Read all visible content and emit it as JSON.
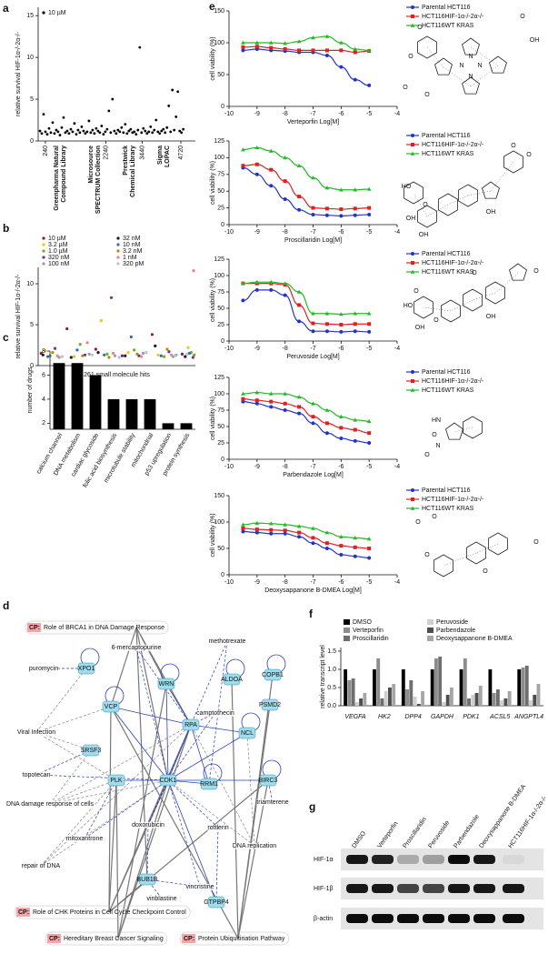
{
  "panel_labels": [
    "a",
    "b",
    "c",
    "d",
    "e",
    "f",
    "g"
  ],
  "chart_data": [
    {
      "type": "scatter",
      "ylabel": "relative survival HIF-1α-/-2α-/-",
      "xlim": [
        0,
        5200
      ],
      "xticks": [
        240,
        2240,
        3440,
        4720
      ],
      "ylim": [
        0,
        16
      ],
      "yticks": [
        0,
        5,
        10,
        15
      ],
      "groups": [
        [
          "Greenpharma Natural",
          "Compound Library"
        ],
        [
          "Microsource",
          "SPECTRUM Collection"
        ],
        [
          "Prestwick",
          "Chemical Library"
        ],
        [
          "Sigma",
          "LOPAC"
        ]
      ],
      "series": [
        {
          "name": "10 µM",
          "color": "#000000",
          "x": [
            60,
            120,
            180,
            240,
            300,
            360,
            420,
            480,
            540,
            600,
            660,
            720,
            780,
            840,
            900,
            960,
            1020,
            1080,
            1140,
            1200,
            1260,
            1320,
            1380,
            1440,
            1500,
            1560,
            1620,
            1680,
            1740,
            1800,
            1860,
            1920,
            1980,
            2040,
            2100,
            2160,
            2220,
            2280,
            2340,
            2400,
            2460,
            2520,
            2580,
            2640,
            2700,
            2760,
            2820,
            2880,
            2940,
            3000,
            3060,
            3120,
            3180,
            3240,
            3300,
            3360,
            3420,
            3480,
            3540,
            3600,
            3660,
            3720,
            3780,
            3840,
            3900,
            3960,
            4020,
            4080,
            4140,
            4200,
            4260,
            4320,
            4380,
            4440,
            4500,
            4560,
            4620,
            4680,
            4740,
            4800
          ],
          "values": [
            1.2,
            0.9,
            3.2,
            1.1,
            0.8,
            1.5,
            1.0,
            2.2,
            0.9,
            1.3,
            1.1,
            0.7,
            1.6,
            2.8,
            1.0,
            1.2,
            0.9,
            1.4,
            1.1,
            2.1,
            0.8,
            1.3,
            1.0,
            1.7,
            1.2,
            0.9,
            1.1,
            2.4,
            1.0,
            1.3,
            0.9,
            1.5,
            1.2,
            1.0,
            1.8,
            0.8,
            1.1,
            1.4,
            3.6,
            1.0,
            5.0,
            1.2,
            0.9,
            1.3,
            1.1,
            1.6,
            1.0,
            2.0,
            0.9,
            1.2,
            1.4,
            1.0,
            1.1,
            0.8,
            1.3,
            11.2,
            1.0,
            1.5,
            1.2,
            0.9,
            1.1,
            1.7,
            1.0,
            1.3,
            2.5,
            1.1,
            0.9,
            1.2,
            1.4,
            1.0,
            1.6,
            4.2,
            1.1,
            6.1,
            1.3,
            2.9,
            5.9,
            1.2,
            1.0,
            1.4
          ]
        }
      ]
    },
    {
      "type": "scatter",
      "ylabel": "relative survival HIF-1α-/-2α-/-",
      "xlabel": "261 small molecule hits",
      "xlim": [
        0,
        262
      ],
      "ylim": [
        0,
        12
      ],
      "yticks": [
        0,
        5,
        10
      ],
      "series": [
        {
          "name": "10 µM",
          "color": "#8b1a4a",
          "x": [
            5,
            48,
            96,
            140,
            190,
            240
          ],
          "values": [
            1.5,
            4.5,
            2.0,
            1.2,
            3.8,
            1.4
          ]
        },
        {
          "name": "3.2 µM",
          "color": "#e6c619",
          "x": [
            12,
            60,
            105,
            150,
            200,
            250
          ],
          "values": [
            1.8,
            1.1,
            5.5,
            1.6,
            1.3,
            2.2
          ]
        },
        {
          "name": "1.0 µM",
          "color": "#6ab023",
          "x": [
            20,
            70,
            115,
            160,
            210,
            255
          ],
          "values": [
            1.2,
            2.6,
            1.4,
            1.9,
            1.1,
            1.6
          ]
        },
        {
          "name": "320 nM",
          "color": "#7a2e8c",
          "x": [
            28,
            78,
            122,
            168,
            218,
            258
          ],
          "values": [
            2.1,
            1.3,
            8.3,
            1.2,
            1.7,
            1.0
          ]
        },
        {
          "name": "100 nM",
          "color": "#9a9a9a",
          "x": [
            35,
            85,
            128,
            175,
            225,
            230
          ],
          "values": [
            1.0,
            1.4,
            1.2,
            1.5,
            1.1,
            1.3
          ]
        },
        {
          "name": "32 nM",
          "color": "#1a1a1a",
          "x": [
            8,
            55,
            100,
            145,
            195,
            245
          ],
          "values": [
            1.3,
            1.0,
            1.6,
            1.2,
            2.4,
            1.1
          ]
        },
        {
          "name": "10 nM",
          "color": "#2c6db5",
          "x": [
            16,
            65,
            110,
            155,
            205,
            252
          ],
          "values": [
            1.1,
            1.9,
            1.3,
            3.5,
            1.2,
            1.5
          ]
        },
        {
          "name": "3.2 nM",
          "color": "#b8860b",
          "x": [
            24,
            74,
            118,
            165,
            215,
            260
          ],
          "values": [
            1.6,
            1.2,
            1.0,
            1.4,
            2.0,
            1.3
          ]
        },
        {
          "name": "1 nM",
          "color": "#f08080",
          "x": [
            32,
            82,
            125,
            172,
            222,
            259
          ],
          "values": [
            1.2,
            2.8,
            1.5,
            1.1,
            1.3,
            11.6
          ]
        },
        {
          "name": "320 pM",
          "color": "#b0c4de",
          "x": [
            40,
            90,
            135,
            180,
            228,
            248
          ],
          "values": [
            1.1,
            1.3,
            1.0,
            1.6,
            1.2,
            1.4
          ]
        }
      ]
    },
    {
      "type": "bar",
      "ylabel": "number of drugs",
      "color": "#000000",
      "categories": [
        "calcium channel",
        "DNA metabolism",
        "cardiac glycoside",
        "folic acid biosynthesis",
        "microtubule stability",
        "mitochondrial",
        "p53 upregulation",
        "protein synthesis"
      ],
      "values": [
        7,
        7,
        6,
        4,
        4,
        4,
        2,
        2
      ],
      "ylim": [
        1.5,
        8
      ],
      "yticks": [
        2,
        4,
        6,
        8
      ]
    },
    {
      "type": "line",
      "ylabel": "cell viability (%)",
      "xlabel": "Verteporfin Log[M]",
      "x": [
        -9.5,
        -9,
        -8.5,
        -8,
        -7.5,
        -7,
        -6.5,
        -6,
        -5.5,
        -5
      ],
      "xlim": [
        -10,
        -4
      ],
      "xticks": [
        -10,
        -9,
        -8,
        -7,
        -6,
        -5,
        -4
      ],
      "ylim": [
        0,
        150
      ],
      "yticks": [
        0,
        50,
        100,
        150
      ],
      "series": [
        {
          "name": "Parental HCT116",
          "color": "#2233cc",
          "values": [
            88,
            90,
            88,
            87,
            85,
            85,
            80,
            62,
            42,
            33
          ]
        },
        {
          "name": "HCT116HIF-1α-/-2α-/-",
          "color": "#e02020",
          "values": [
            93,
            94,
            92,
            90,
            88,
            88,
            88,
            88,
            85,
            87
          ]
        },
        {
          "name": "HCT116WT KRAS",
          "color": "#22bb22",
          "values": [
            100,
            100,
            100,
            99,
            102,
            108,
            110,
            100,
            90,
            88
          ]
        }
      ]
    },
    {
      "type": "line",
      "ylabel": "cell viability (%)",
      "xlabel": "Proscillaridin Log[M]",
      "x": [
        -9.5,
        -9,
        -8.5,
        -8,
        -7.5,
        -7,
        -6.5,
        -6,
        -5.5,
        -5
      ],
      "xlim": [
        -10,
        -4
      ],
      "xticks": [
        -10,
        -9,
        -8,
        -7,
        -6,
        -5,
        -4
      ],
      "ylim": [
        0,
        125
      ],
      "yticks": [
        0,
        25,
        50,
        75,
        100,
        125
      ],
      "series": [
        {
          "name": "Parental HCT116",
          "color": "#2233cc",
          "values": [
            85,
            75,
            58,
            38,
            22,
            15,
            14,
            13,
            14,
            15
          ]
        },
        {
          "name": "HCT116HIF-1α-/-2α-/-",
          "color": "#e02020",
          "values": [
            88,
            90,
            82,
            65,
            42,
            25,
            24,
            23,
            24,
            25
          ]
        },
        {
          "name": "HCT116WT KRAS",
          "color": "#22bb22",
          "values": [
            112,
            115,
            110,
            100,
            88,
            70,
            55,
            52,
            52,
            53
          ]
        }
      ]
    },
    {
      "type": "line",
      "ylabel": "cell viability (%)",
      "xlabel": "Peruvoside Log[M]",
      "x": [
        -9.5,
        -9,
        -8.5,
        -8,
        -7.5,
        -7,
        -6.5,
        -6,
        -5.5,
        -5
      ],
      "xlim": [
        -10,
        -4
      ],
      "xticks": [
        -10,
        -9,
        -8,
        -7,
        -6,
        -5,
        -4
      ],
      "ylim": [
        0,
        125
      ],
      "yticks": [
        0,
        25,
        50,
        75,
        100,
        125
      ],
      "series": [
        {
          "name": "Parental HCT116",
          "color": "#2233cc",
          "values": [
            62,
            78,
            78,
            70,
            30,
            15,
            15,
            14,
            15,
            14
          ]
        },
        {
          "name": "HCT116HIF-1α-/-2α-/-",
          "color": "#e02020",
          "values": [
            88,
            88,
            88,
            86,
            55,
            27,
            26,
            25,
            26,
            26
          ]
        },
        {
          "name": "HCT116WT KRAS",
          "color": "#22bb22",
          "values": [
            88,
            90,
            90,
            88,
            75,
            42,
            42,
            41,
            42,
            42
          ]
        }
      ]
    },
    {
      "type": "line",
      "ylabel": "cell viability (%)",
      "xlabel": "Parbendazole Log[M]",
      "x": [
        -9.5,
        -9,
        -8.5,
        -8,
        -7.5,
        -7,
        -6.5,
        -6,
        -5.5,
        -5
      ],
      "xlim": [
        -10,
        -4
      ],
      "xticks": [
        -10,
        -9,
        -8,
        -7,
        -6,
        -5,
        -4
      ],
      "ylim": [
        0,
        125
      ],
      "yticks": [
        0,
        25,
        50,
        75,
        100,
        125
      ],
      "series": [
        {
          "name": "Parental HCT116",
          "color": "#2233cc",
          "values": [
            88,
            85,
            80,
            75,
            70,
            55,
            40,
            32,
            28,
            25
          ]
        },
        {
          "name": "HCT116HIF-1α-/-2α-/-",
          "color": "#e02020",
          "values": [
            92,
            90,
            88,
            85,
            80,
            65,
            55,
            48,
            45,
            40
          ]
        },
        {
          "name": "HCT116WT KRAS",
          "color": "#22bb22",
          "values": [
            100,
            102,
            100,
            100,
            95,
            85,
            75,
            65,
            60,
            58
          ]
        }
      ]
    },
    {
      "type": "line",
      "ylabel": "cell viability (%)",
      "xlabel": "Deoxysappanone B-DMEA Log[M]",
      "x": [
        -9.5,
        -9,
        -8.5,
        -8,
        -7.5,
        -7,
        -6.5,
        -6,
        -5.5,
        -5
      ],
      "xlim": [
        -10,
        -4
      ],
      "xticks": [
        -10,
        -9,
        -8,
        -7,
        -6,
        -5,
        -4
      ],
      "ylim": [
        0,
        150
      ],
      "yticks": [
        0,
        50,
        100,
        150
      ],
      "series": [
        {
          "name": "Parental HCT116",
          "color": "#2233cc",
          "values": [
            82,
            80,
            78,
            78,
            72,
            60,
            50,
            38,
            35,
            32
          ]
        },
        {
          "name": "HCT116HIF-1α-/-2α-/-",
          "color": "#e02020",
          "values": [
            88,
            86,
            85,
            84,
            80,
            70,
            60,
            55,
            52,
            50
          ]
        },
        {
          "name": "HCT116WT KRAS",
          "color": "#22bb22",
          "values": [
            95,
            98,
            97,
            95,
            92,
            88,
            80,
            72,
            70,
            68
          ]
        }
      ]
    },
    {
      "type": "grouped_bar",
      "ylabel": "relative transcript level",
      "categories": [
        "VEGFA",
        "HK2",
        "DPP4",
        "GAPDH",
        "PDK1",
        "ACSL5",
        "ANGPTL4"
      ],
      "ylim": [
        0,
        1.6
      ],
      "yticks": [
        {
          "value": 0,
          "label": "0.0"
        },
        0.5,
        {
          "value": 1,
          "label": "1.0"
        },
        1.5
      ],
      "series": [
        {
          "name": "DMSO",
          "color": "#000000",
          "values": [
            1,
            1,
            1,
            1,
            1,
            1,
            1
          ]
        },
        {
          "name": "Verteporfin",
          "color": "#8c8c8c",
          "values": [
            0.7,
            1.3,
            0.45,
            1.3,
            1.3,
            0.35,
            1.05
          ]
        },
        {
          "name": "Proscillaridin",
          "color": "#6e6e6e",
          "values": [
            0.75,
            0.2,
            0.7,
            1.35,
            0.2,
            0.45,
            1.1
          ]
        },
        {
          "name": "Peruvoside",
          "color": "#cfcfcf",
          "values": [
            0.1,
            0.4,
            0.25,
            0.1,
            0.3,
            0.15,
            0.15
          ]
        },
        {
          "name": "Parbendazole",
          "color": "#4d4d4d",
          "values": [
            0.2,
            0.5,
            0.05,
            0.3,
            0.35,
            0.2,
            0.3
          ]
        },
        {
          "name": "Deoxysappanone B-DMEA",
          "color": "#a6a6a6",
          "values": [
            0.35,
            0.6,
            0.4,
            0.5,
            0.55,
            0.4,
            0.6
          ]
        }
      ]
    }
  ],
  "structures": [
    {
      "atoms": [
        "O",
        "O",
        "O",
        "O",
        "N",
        "N",
        "N",
        "N",
        "OH",
        "O"
      ]
    },
    {
      "atoms": [
        "O",
        "O",
        "O",
        "HO",
        "OH",
        "OH",
        "OH"
      ]
    },
    {
      "atoms": [
        "O",
        "O",
        "HO",
        "OH",
        "OH",
        "O",
        "O"
      ]
    },
    {
      "atoms": [
        "HN",
        "N",
        "O",
        "O"
      ]
    },
    {
      "atoms": [
        "O",
        "O",
        "O",
        "O",
        "O"
      ]
    }
  ],
  "network": {
    "nodes": [
      "6-mercaptopurine",
      "methotrexate",
      "puromycin",
      "XPO1",
      "ALDOA",
      "COPB1",
      "WRN",
      "VCP",
      "PSMD2",
      "camptothecin",
      "RPA",
      "NCL",
      "Viral Infection",
      "SRSF3",
      "topotecan",
      "PLK",
      "CDK1",
      "RRM1",
      "BIRC3",
      "DNA damage response of cells",
      "triamterene",
      "doxorubicin",
      "rottlerin",
      "mitoxantrone",
      "DNA replication",
      "repair of DNA",
      "BUB1B",
      "vincristine",
      "vinblastine",
      "GTPBP4"
    ],
    "pathways": [
      {
        "tag": "CP:",
        "label": "Role of BRCA1 in DNA Damage Response"
      },
      {
        "tag": "CP:",
        "label": "Role of CHK Proteins in Cell Cycle Checkpoint Control"
      },
      {
        "tag": "CP:",
        "label": "Hereditary Breast Cancer Signaling"
      },
      {
        "tag": "CP:",
        "label": "Protein Ubiquitination Pathway"
      }
    ]
  },
  "blot": {
    "lanes": [
      "DMSO",
      "Verteporfin",
      "Proscillaridin",
      "Peruvoside",
      "Parbendazole",
      "Deoxysappanone B-DMEA",
      "HCT116HIF-1α-/-2α-/-"
    ],
    "rows": [
      "HIF-1α",
      "HIF-1β",
      "β-actin"
    ]
  }
}
